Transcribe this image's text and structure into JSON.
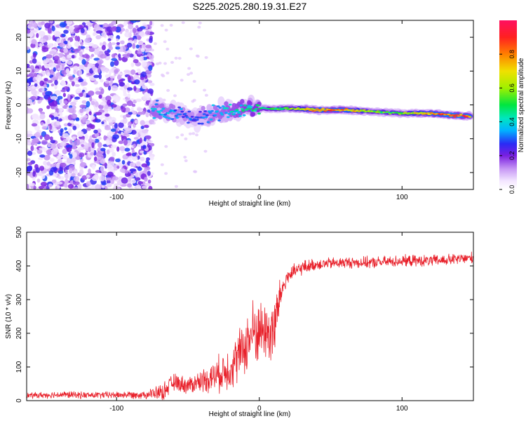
{
  "chart_data": [
    {
      "type": "heatmap",
      "title": "S225.2025.280.19.31.E27",
      "xlabel": "Height of straight line (km)",
      "ylabel": "Frequency (Hz)",
      "xlim": [
        -163,
        150
      ],
      "ylim": [
        -25,
        25
      ],
      "x_ticks": [
        -100,
        0,
        100
      ],
      "y_ticks": [
        -20,
        -10,
        0,
        10,
        20
      ],
      "colorbar": {
        "label": "Normalized spectral amplitude",
        "range": [
          0.0,
          1.0
        ],
        "ticks": [
          0.0,
          0.2,
          0.4,
          0.6,
          0.8
        ]
      },
      "noise_region": {
        "x_range": [
          -163,
          -75
        ],
        "y_range": [
          -25,
          25
        ],
        "amplitude": [
          0.05,
          0.3
        ]
      },
      "signal_track": {
        "x": [
          -75,
          -60,
          -45,
          -35,
          -25,
          -15,
          -5,
          0,
          10,
          20,
          40,
          60,
          80,
          100,
          120,
          140,
          148
        ],
        "frequency": [
          -1,
          -2.5,
          -4,
          -3,
          -2,
          -1.5,
          -1,
          -1,
          -1.2,
          -1,
          -1.5,
          -1.5,
          -2,
          -2.5,
          -2.5,
          -3.2,
          -3.3
        ],
        "peak_amplitude": [
          0.4,
          0.35,
          0.3,
          0.35,
          0.4,
          0.45,
          0.5,
          0.5,
          0.55,
          0.6,
          0.85,
          0.9,
          0.6,
          0.6,
          0.85,
          0.95,
          0.9
        ]
      }
    },
    {
      "type": "line",
      "title": "",
      "xlabel": "Height of straight line (km)",
      "ylabel": "SNR (10 * v/v)",
      "xlim": [
        -163,
        150
      ],
      "ylim": [
        0,
        500
      ],
      "x_ticks": [
        -100,
        0,
        100
      ],
      "y_ticks": [
        0,
        100,
        200,
        300,
        400,
        500
      ],
      "series": [
        {
          "name": "SNR",
          "color": "#e8202a",
          "x": [
            -163,
            -140,
            -120,
            -100,
            -80,
            -68,
            -60,
            -50,
            -40,
            -30,
            -20,
            -10,
            -5,
            0,
            5,
            10,
            15,
            20,
            30,
            40,
            60,
            80,
            100,
            120,
            140,
            150
          ],
          "y": [
            15,
            18,
            16,
            17,
            18,
            25,
            55,
            45,
            60,
            75,
            100,
            160,
            200,
            210,
            205,
            200,
            320,
            370,
            395,
            405,
            410,
            410,
            415,
            415,
            420,
            425
          ],
          "spread": [
            10,
            12,
            12,
            12,
            14,
            30,
            30,
            30,
            40,
            60,
            80,
            100,
            120,
            110,
            100,
            150,
            50,
            30,
            25,
            20,
            20,
            20,
            20,
            20,
            20,
            20
          ]
        }
      ]
    }
  ]
}
